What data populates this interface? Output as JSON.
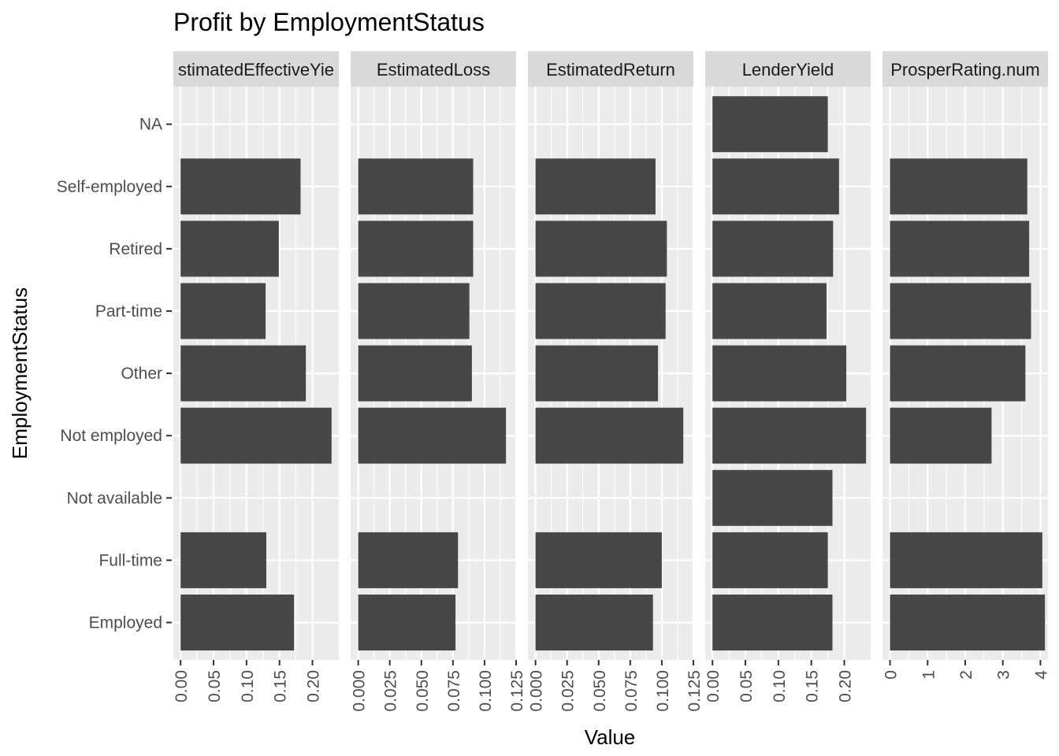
{
  "chart_data": {
    "type": "bar",
    "orientation": "horizontal",
    "title": "Profit by EmploymentStatus",
    "xlabel": "Value",
    "ylabel": "EmploymentStatus",
    "grid": true,
    "background": "#EBEBEB",
    "bar_color": "#474747",
    "strip_color": "#D9D9D9",
    "categories": [
      "Employed",
      "Full-time",
      "Not available",
      "Not employed",
      "Other",
      "Part-time",
      "Retired",
      "Self-employed",
      "NA"
    ],
    "facets": [
      {
        "name": "EstimatedEffectiveYield",
        "strip_label": "stimatedEffectiveYie",
        "xlim": [
          -0.011,
          0.24
        ],
        "ticks": [
          0,
          0.05,
          0.1,
          0.15,
          0.2
        ],
        "tick_labels": [
          "0.00",
          "0.05",
          "0.10",
          "0.15",
          "0.20"
        ],
        "values": [
          0.172,
          0.13,
          null,
          0.229,
          0.19,
          0.129,
          0.149,
          0.182,
          null
        ]
      },
      {
        "name": "EstimatedLoss",
        "strip_label": "EstimatedLoss",
        "xlim": [
          -0.006,
          0.125
        ],
        "ticks": [
          0,
          0.025,
          0.05,
          0.075,
          0.1,
          0.125
        ],
        "tick_labels": [
          "0.000",
          "0.025",
          "0.050",
          "0.075",
          "0.100",
          "0.125"
        ],
        "values": [
          0.077,
          0.079,
          null,
          0.117,
          0.09,
          0.088,
          0.091,
          0.091,
          null
        ]
      },
      {
        "name": "EstimatedReturn",
        "strip_label": "EstimatedReturn",
        "xlim": [
          -0.006,
          0.125
        ],
        "ticks": [
          0,
          0.025,
          0.05,
          0.075,
          0.1,
          0.125
        ],
        "tick_labels": [
          "0.000",
          "0.025",
          "0.050",
          "0.075",
          "0.100",
          "0.125"
        ],
        "values": [
          0.093,
          0.1,
          null,
          0.117,
          0.097,
          0.103,
          0.104,
          0.095,
          null
        ]
      },
      {
        "name": "LenderYield",
        "strip_label": "LenderYield",
        "xlim": [
          -0.011,
          0.24
        ],
        "ticks": [
          0,
          0.05,
          0.1,
          0.15,
          0.2
        ],
        "tick_labels": [
          "0.00",
          "0.05",
          "0.10",
          "0.15",
          "0.20"
        ],
        "values": [
          0.182,
          0.175,
          0.182,
          0.233,
          0.203,
          0.173,
          0.183,
          0.192,
          0.175
        ]
      },
      {
        "name": "ProsperRating.num",
        "strip_label": "ProsperRating.num",
        "xlim": [
          -0.2,
          4.2
        ],
        "ticks": [
          0,
          1,
          2,
          3,
          4
        ],
        "tick_labels": [
          "0",
          "1",
          "2",
          "3",
          "4"
        ],
        "values": [
          4.12,
          4.05,
          null,
          2.7,
          3.6,
          3.75,
          3.7,
          3.65,
          null
        ]
      }
    ]
  }
}
